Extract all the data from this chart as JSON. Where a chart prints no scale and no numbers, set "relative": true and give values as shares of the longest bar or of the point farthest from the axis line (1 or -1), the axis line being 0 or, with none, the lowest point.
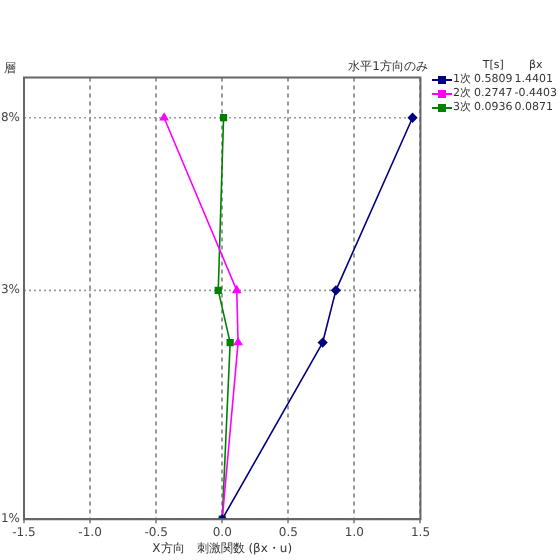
{
  "chart_data": {
    "type": "line",
    "title": "水平1方向のみ",
    "xlabel": "X方向　刺激関数 (βx・u)",
    "ylabel": "層",
    "xlim": [
      -1.5,
      1.5
    ],
    "xticks": [
      -1.5,
      {
        "value": -1,
        "label": "-1.0"
      },
      -0.5,
      {
        "value": 0,
        "label": "0.0"
      },
      0.5,
      {
        "value": 1,
        "label": "1.0"
      },
      1.5
    ],
    "relative": true,
    "series": [
      {
        "name": "1次",
        "color": "#000080",
        "marker": "diamond",
        "x": [
          0,
          0.76,
          0.86,
          1.44
        ],
        "values": [
          0,
          0.44,
          0.57,
          1
        ]
      },
      {
        "name": "2次",
        "color": "#ff00ff",
        "marker": "triangle",
        "x": [
          0,
          0.12,
          0.11,
          -0.44
        ],
        "values": [
          0,
          0.44,
          0.57,
          1
        ]
      },
      {
        "name": "3次",
        "color": "#008000",
        "marker": "square",
        "x": [
          0,
          0.06,
          -0.03,
          0.01
        ],
        "values": [
          0,
          0.44,
          0.57,
          1
        ]
      }
    ],
    "legend_title": "T[s]",
    "annotations": [
      "βx",
      "0.5809",
      "1.4401",
      "0.2747",
      "-0.4403",
      "0.0936",
      "0.0871",
      "8%",
      "3%",
      "1%"
    ],
    "ref_lines": [
      {
        "axis": "y",
        "value": 1,
        "color": "#999999",
        "line_style": "dotted"
      },
      {
        "axis": "y",
        "value": 0.57,
        "color": "#999999",
        "line_style": "dotted"
      },
      {
        "axis": "y",
        "value": 0,
        "color": "#999999",
        "line_style": "dotted"
      }
    ],
    "grid": "x",
    "legend": "top right"
  }
}
